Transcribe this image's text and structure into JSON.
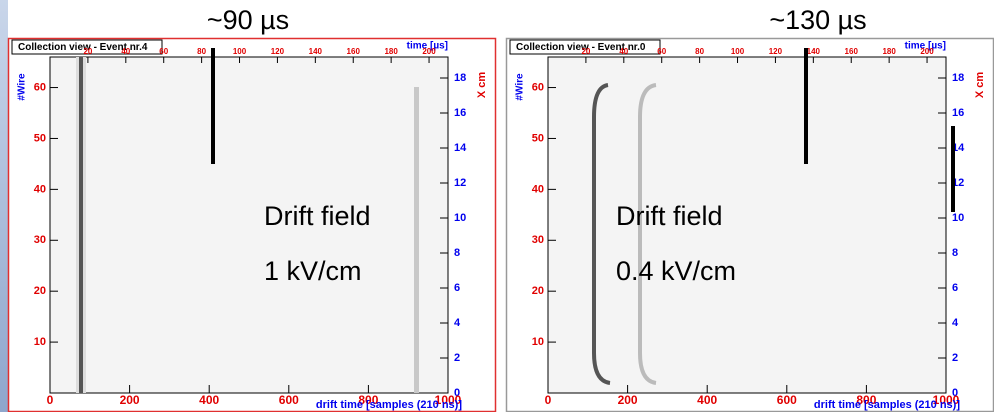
{
  "panels": [
    {
      "title": "Collection view - Event nr.4",
      "top_axis_label": "time [µs]",
      "top_ticks": [
        "20",
        "40",
        "60",
        "80",
        "100",
        "120",
        "140",
        "160",
        "180",
        "200"
      ],
      "left_axis_label": "#Wire",
      "left_ticks": [
        "10",
        "20",
        "30",
        "40",
        "50",
        "60"
      ],
      "right_axis_label": "X cm",
      "right_ticks": [
        "0",
        "2",
        "4",
        "6",
        "8",
        "10",
        "12",
        "14",
        "16",
        "18"
      ],
      "bottom_ticks": [
        "0",
        "200",
        "400",
        "600",
        "800",
        "1000"
      ],
      "bottom_axis_label": "drift time [samples (210 ns)]",
      "annotation": "~90 µs",
      "field_label": [
        "Drift field",
        "1 kV/cm"
      ]
    },
    {
      "title": "Collection view - Event nr.0",
      "top_axis_label": "time [µs]",
      "top_ticks": [
        "20",
        "40",
        "60",
        "80",
        "100",
        "120",
        "140",
        "160",
        "180",
        "200"
      ],
      "left_axis_label": "#Wire",
      "left_ticks": [
        "10",
        "20",
        "30",
        "40",
        "50",
        "60"
      ],
      "right_axis_label": "X cm",
      "right_ticks": [
        "0",
        "2",
        "4",
        "6",
        "8",
        "10",
        "12",
        "14",
        "16",
        "18"
      ],
      "bottom_ticks": [
        "0",
        "200",
        "400",
        "600",
        "800",
        "1000"
      ],
      "bottom_axis_label": "drift time [samples (210 ns)]",
      "annotation": "~130 µs",
      "field_label": [
        "Drift field",
        "0.4 kV/cm"
      ]
    }
  ]
}
